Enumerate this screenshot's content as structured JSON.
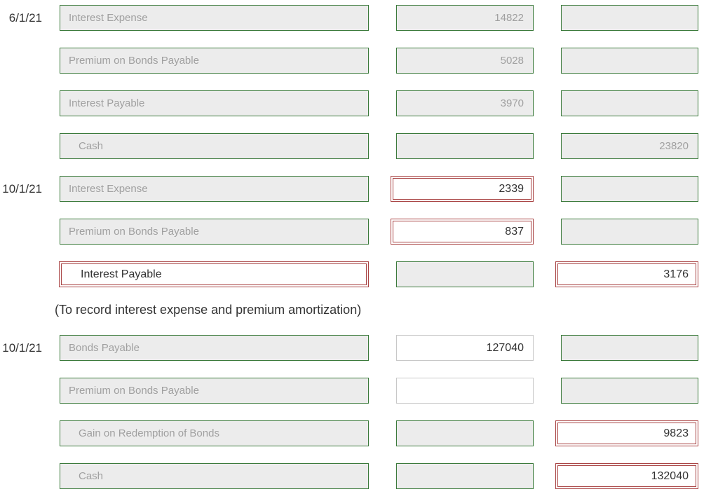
{
  "rows": [
    {
      "date": "6/1/21",
      "account": "Interest Expense",
      "debit": "14822"
    },
    {
      "account": "Premium on Bonds Payable",
      "debit": "5028"
    },
    {
      "account": "Interest Payable",
      "debit": "3970"
    },
    {
      "account": "Cash",
      "credit": "23820"
    },
    {
      "date": "10/1/21",
      "account": "Interest Expense",
      "debit": "2339"
    },
    {
      "account": "Premium on Bonds Payable",
      "debit": "837"
    },
    {
      "account": "Interest Payable",
      "credit": "3176"
    },
    {
      "date": "10/1/21",
      "account": "Bonds Payable",
      "debit": "127040"
    },
    {
      "account": "Premium on Bonds Payable"
    },
    {
      "account": "Gain on Redemption of Bonds",
      "credit": "9823"
    },
    {
      "account": "Cash",
      "credit": "132040"
    }
  ],
  "note": "(To record interest expense and premium amortization)"
}
